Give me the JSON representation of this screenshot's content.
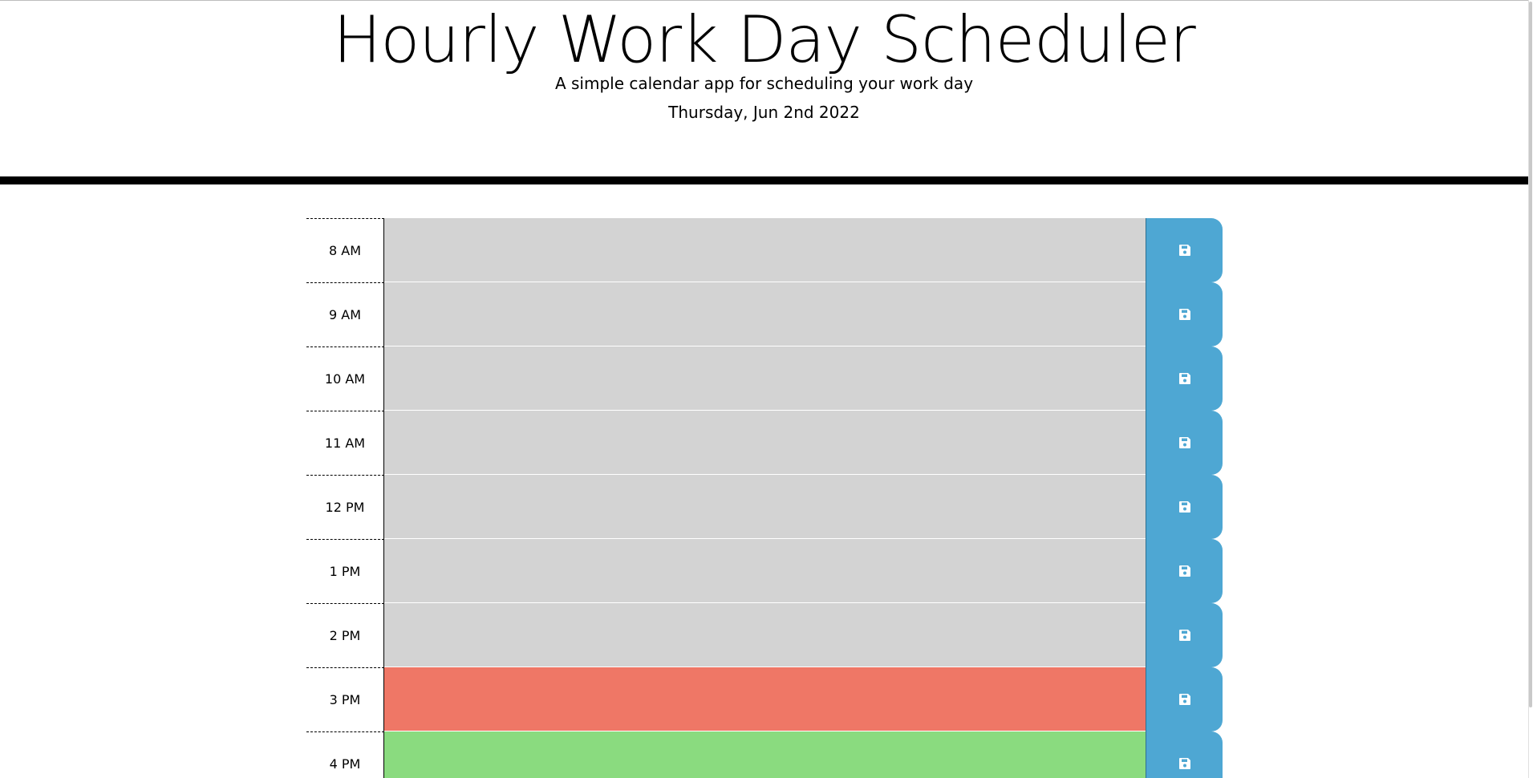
{
  "header": {
    "title": "Hourly Work Day Scheduler",
    "subtitle": "A simple calendar app for scheduling your work day",
    "current_day": "Thursday, Jun 2nd 2022"
  },
  "colors": {
    "past": "#d3d3d3",
    "present": "#ef7766",
    "future": "#8adb7f",
    "save_button": "#4ea7d3"
  },
  "time_blocks": [
    {
      "hour": "8 AM",
      "state": "past",
      "text": "",
      "save_icon": "floppy-disk-icon"
    },
    {
      "hour": "9 AM",
      "state": "past",
      "text": "",
      "save_icon": "floppy-disk-icon"
    },
    {
      "hour": "10 AM",
      "state": "past",
      "text": "",
      "save_icon": "floppy-disk-icon"
    },
    {
      "hour": "11 AM",
      "state": "past",
      "text": "",
      "save_icon": "floppy-disk-icon"
    },
    {
      "hour": "12 PM",
      "state": "past",
      "text": "",
      "save_icon": "floppy-disk-icon"
    },
    {
      "hour": "1 PM",
      "state": "past",
      "text": "",
      "save_icon": "floppy-disk-icon"
    },
    {
      "hour": "2 PM",
      "state": "past",
      "text": "",
      "save_icon": "floppy-disk-icon"
    },
    {
      "hour": "3 PM",
      "state": "present",
      "text": "",
      "save_icon": "floppy-disk-icon"
    },
    {
      "hour": "4 PM",
      "state": "future",
      "text": "",
      "save_icon": "floppy-disk-icon"
    }
  ]
}
